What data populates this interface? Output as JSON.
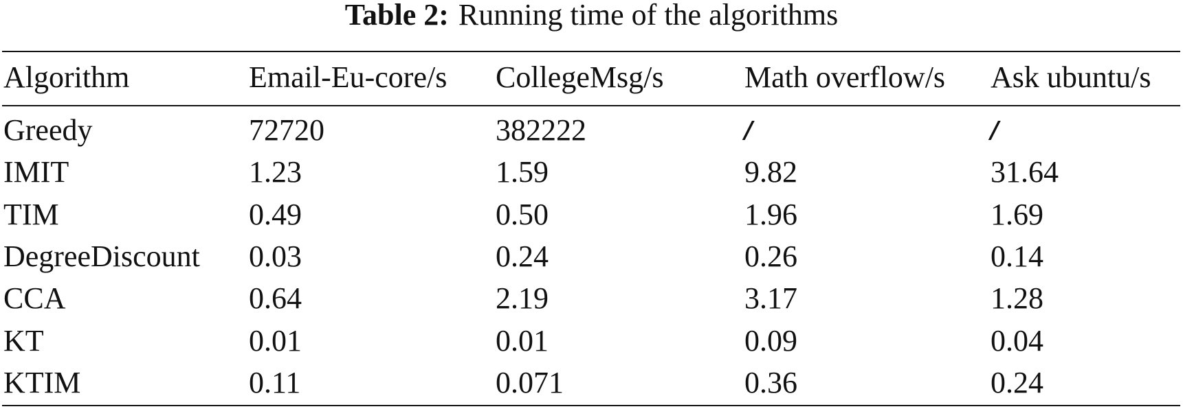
{
  "table": {
    "title": {
      "label": "Table 2:",
      "text": "Running time of the algorithms"
    },
    "header": [
      "Algorithm",
      "Email-Eu-core/s",
      "CollegeMsg/s",
      "Math overflow/s",
      "Ask ubuntu/s"
    ],
    "rows": [
      [
        "Greedy",
        "72720",
        "382222",
        "/",
        "/"
      ],
      [
        "IMIT",
        "1.23",
        "1.59",
        "9.82",
        "31.64"
      ],
      [
        "TIM",
        "0.49",
        "0.50",
        "1.96",
        "1.69"
      ],
      [
        "DegreeDiscount",
        "0.03",
        "0.24",
        "0.26",
        "0.14"
      ],
      [
        "CCA",
        "0.64",
        "2.19",
        "3.17",
        "1.28"
      ],
      [
        "KT",
        "0.01",
        "0.01",
        "0.09",
        "0.04"
      ],
      [
        "KTIM",
        "0.11",
        "0.071",
        "0.36",
        "0.24"
      ]
    ]
  }
}
